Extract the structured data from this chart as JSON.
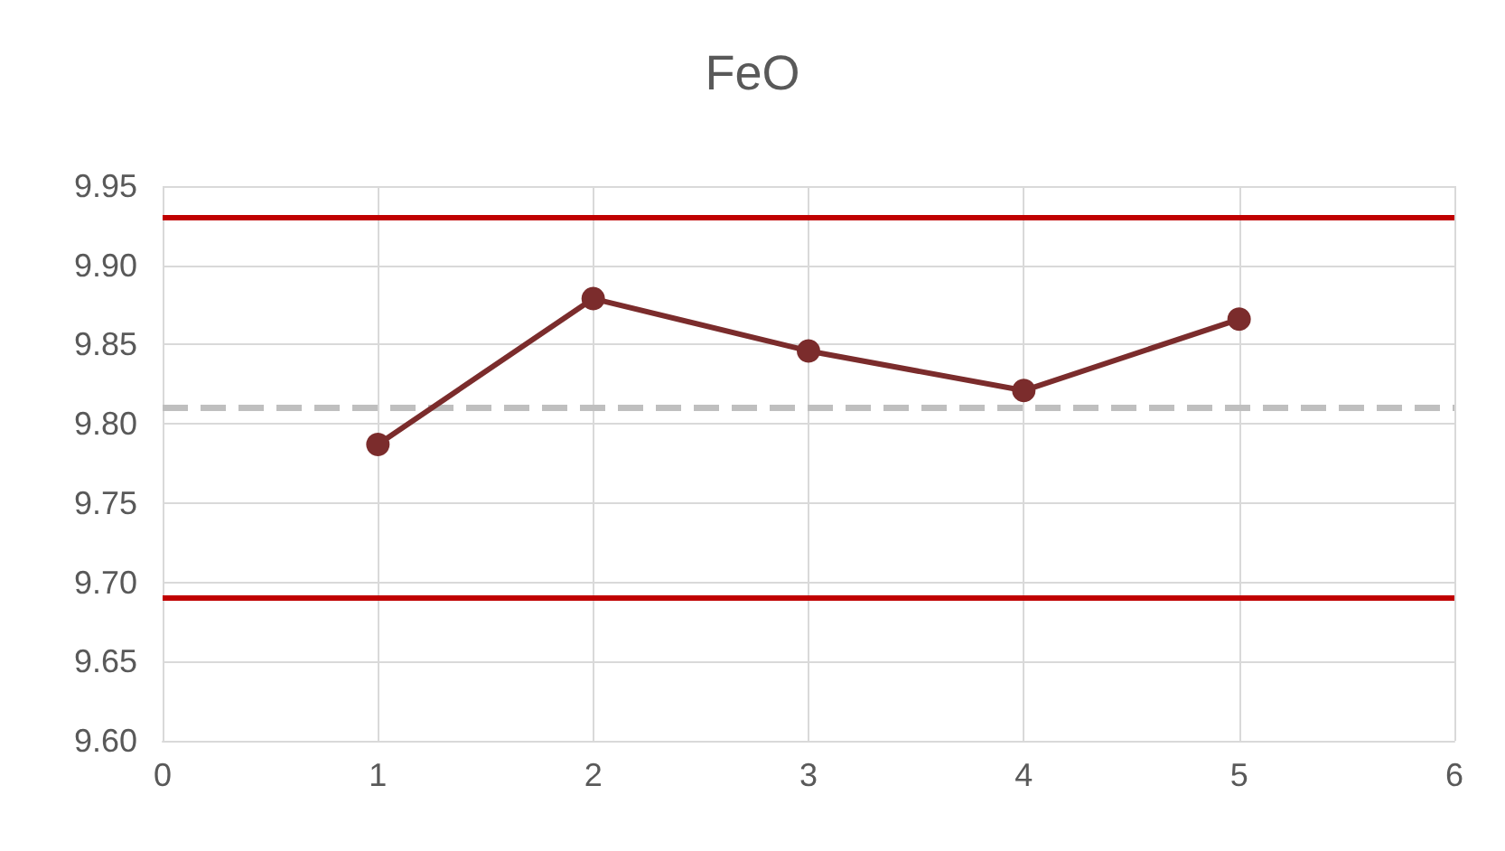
{
  "chart_data": {
    "type": "line",
    "title": "FeO",
    "x": [
      1,
      2,
      3,
      4,
      5
    ],
    "series": [
      {
        "color": "#7b2c2c",
        "values": [
          9.787,
          9.879,
          9.846,
          9.821,
          9.866
        ]
      }
    ],
    "xlim": [
      0,
      6
    ],
    "xticks": [
      0,
      1,
      2,
      3,
      4,
      5,
      6
    ],
    "ylim": [
      9.6,
      9.95
    ],
    "yticks": [
      {
        "value": 9.6,
        "label": "9.60"
      },
      9.65,
      {
        "value": 9.7,
        "label": "9.70"
      },
      9.75,
      {
        "value": 9.8,
        "label": "9.80"
      },
      9.85,
      {
        "value": 9.9,
        "label": "9.90"
      },
      9.95
    ],
    "ref_lines": [
      {
        "axis": "y",
        "value": 9.93,
        "color": "#c00000",
        "line_style": "solid"
      },
      {
        "axis": "y",
        "value": 9.69,
        "color": "#c00000",
        "line_style": "solid"
      },
      {
        "axis": "y",
        "value": 9.81,
        "color": "#bfbfbf",
        "line_style": "dashed"
      }
    ],
    "grid": true,
    "marker": "circle",
    "line_style": "solid"
  }
}
